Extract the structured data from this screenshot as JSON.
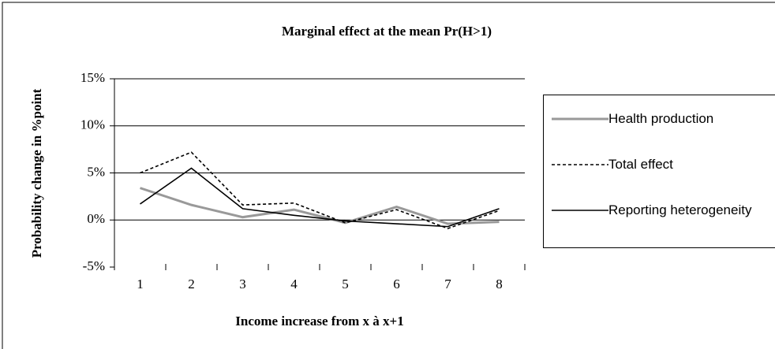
{
  "chart_data": {
    "type": "line",
    "title": "Marginal effect at the mean Pr(H>1)",
    "x_label": "Income increase from  x à x+1",
    "y_label": "Probability change in %point",
    "categories": [
      "1",
      "2",
      "3",
      "4",
      "5",
      "6",
      "7",
      "8"
    ],
    "series": [
      {
        "name": "Health production",
        "color": "#999999",
        "style": "solid",
        "values": [
          3.4,
          1.6,
          0.3,
          1.1,
          -0.3,
          1.4,
          -0.4,
          -0.2
        ]
      },
      {
        "name": "Total effect",
        "color": "#000000",
        "style": "dashed",
        "values": [
          5.0,
          7.2,
          1.6,
          1.8,
          -0.3,
          1.1,
          -0.9,
          1.0
        ]
      },
      {
        "name": "Reporting heterogeneity",
        "color": "#000000",
        "style": "solid",
        "values": [
          1.7,
          5.5,
          1.2,
          0.5,
          -0.1,
          -0.4,
          -0.7,
          1.2
        ]
      }
    ],
    "ylim": [
      -5,
      15
    ],
    "yticks": [
      {
        "value": -5,
        "label": "-5%"
      },
      {
        "value": 0,
        "label": "0%"
      },
      {
        "value": 5,
        "label": "5%"
      },
      {
        "value": 10,
        "label": "10%"
      },
      {
        "value": 15,
        "label": "15%"
      }
    ],
    "grid": true
  }
}
